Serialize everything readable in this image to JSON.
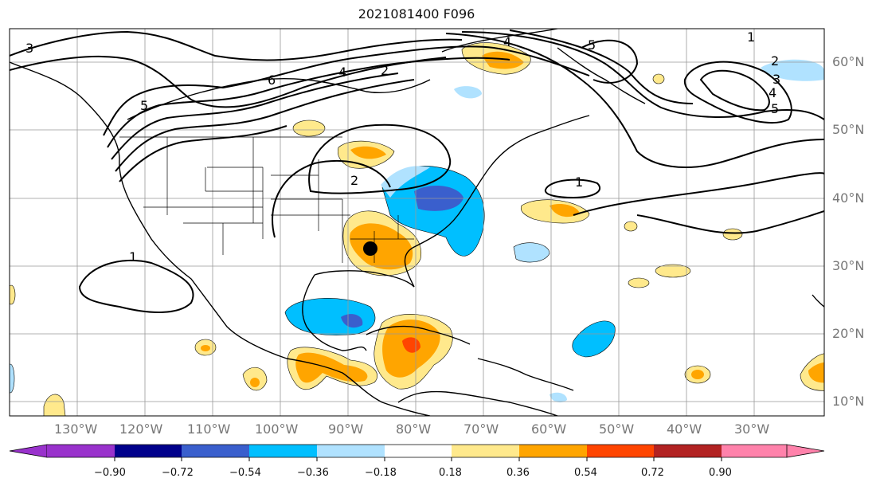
{
  "title": "2021081400 F096",
  "lat_labels": [
    "60°N",
    "50°N",
    "40°N",
    "30°N",
    "20°N",
    "10°N"
  ],
  "lon_labels": [
    "130°W",
    "120°W",
    "110°W",
    "100°W",
    "90°W",
    "80°W",
    "70°W",
    "60°W",
    "50°W",
    "40°W",
    "30°W"
  ],
  "colorbar": {
    "ticks": [
      "−0.90",
      "−0.72",
      "−0.54",
      "−0.36",
      "−0.18",
      "0.18",
      "0.36",
      "0.54",
      "0.72",
      "0.90"
    ],
    "colors": [
      "#9932cc",
      "#00008b",
      "#3a5fcd",
      "#00bfff",
      "#b0e2ff",
      "#ffffff",
      "#ffe98c",
      "#ffa500",
      "#ff4500",
      "#b22222",
      "#ff82ab"
    ]
  },
  "contour_labels": [
    "3",
    "5",
    "6",
    "4",
    "2",
    "5",
    "1",
    "4",
    "2",
    "3",
    "4",
    "5",
    "2",
    "1",
    "1"
  ],
  "marker": {
    "description": "storm-center",
    "color": "#000000"
  }
}
